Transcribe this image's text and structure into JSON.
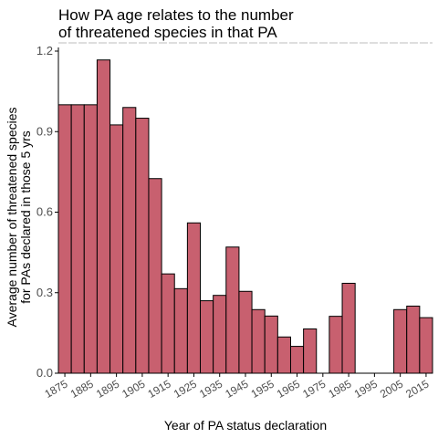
{
  "chart_data": {
    "type": "bar",
    "title": "How PA age relates to the number\nof threatened species in that PA",
    "xlabel": "Year of PA status declaration",
    "ylabel": "Average number of threatened species\nfor PAs declared in those 5 yrs",
    "ylim": [
      0,
      1.2
    ],
    "yticks": [
      "0.0",
      "0.3",
      "0.6",
      "0.9",
      "1.2"
    ],
    "xtick_labels": [
      "1875",
      "1885",
      "1895",
      "1905",
      "1915",
      "1925",
      "1935",
      "1945",
      "1955",
      "1965",
      "1975",
      "1985",
      "1995",
      "2005",
      "2015"
    ],
    "bar_color": "#c8606f",
    "bar_edge_color": "#000000",
    "bin_width": 5,
    "bins": [
      {
        "x": 1875,
        "value": 1.0
      },
      {
        "x": 1880,
        "value": 1.0
      },
      {
        "x": 1885,
        "value": 1.0
      },
      {
        "x": 1890,
        "value": 1.167
      },
      {
        "x": 1895,
        "value": 0.925
      },
      {
        "x": 1900,
        "value": 0.99
      },
      {
        "x": 1905,
        "value": 0.95
      },
      {
        "x": 1910,
        "value": 0.725
      },
      {
        "x": 1915,
        "value": 0.37
      },
      {
        "x": 1920,
        "value": 0.315
      },
      {
        "x": 1925,
        "value": 0.56
      },
      {
        "x": 1930,
        "value": 0.27
      },
      {
        "x": 1935,
        "value": 0.29
      },
      {
        "x": 1940,
        "value": 0.47
      },
      {
        "x": 1945,
        "value": 0.305
      },
      {
        "x": 1950,
        "value": 0.237
      },
      {
        "x": 1955,
        "value": 0.213
      },
      {
        "x": 1960,
        "value": 0.135
      },
      {
        "x": 1965,
        "value": 0.1
      },
      {
        "x": 1970,
        "value": 0.165
      },
      {
        "x": 1975,
        "value": 0
      },
      {
        "x": 1980,
        "value": 0.212
      },
      {
        "x": 1985,
        "value": 0.335
      },
      {
        "x": 1990,
        "value": 0
      },
      {
        "x": 1995,
        "value": 0
      },
      {
        "x": 2000,
        "value": 0
      },
      {
        "x": 2005,
        "value": 0.237
      },
      {
        "x": 2010,
        "value": 0.25
      },
      {
        "x": 2015,
        "value": 0.207
      }
    ],
    "grid": false,
    "legend": "none"
  }
}
